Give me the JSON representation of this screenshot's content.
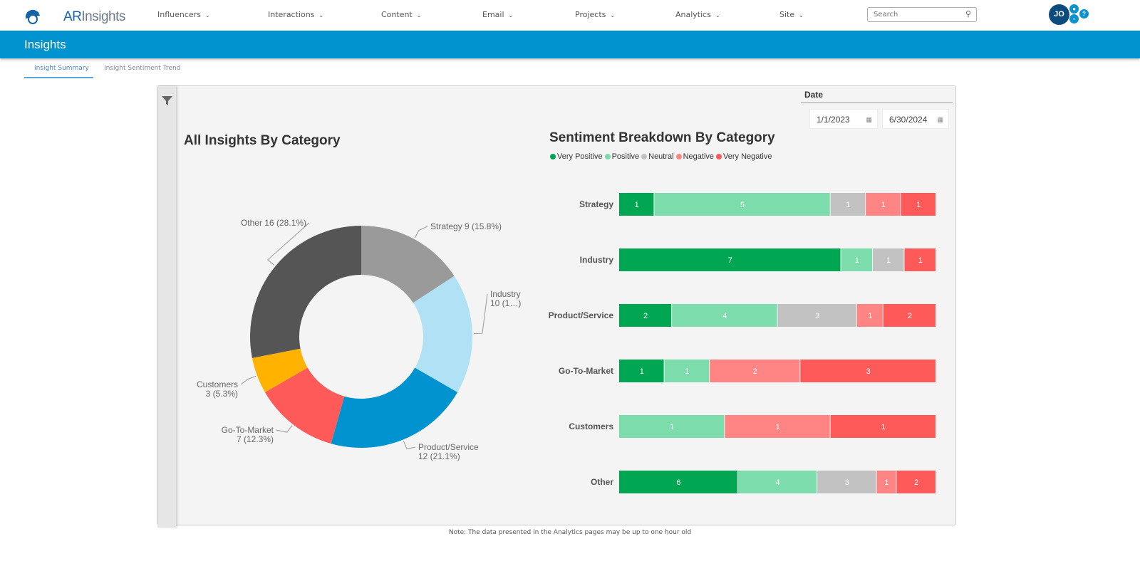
{
  "header": {
    "logo_text_a": "AR",
    "logo_text_b": "Insights",
    "nav": [
      "Influencers",
      "Interactions",
      "Content",
      "Email",
      "Projects",
      "Analytics",
      "Site"
    ],
    "search_placeholder": "Search",
    "avatar_initials": "JO"
  },
  "page_title": "Insights",
  "tabs": [
    {
      "label": "Insight Summary",
      "active": true
    },
    {
      "label": "Insight Sentiment Trend",
      "active": false
    }
  ],
  "date_filter": {
    "label": "Date",
    "start": "1/1/2023",
    "end": "6/30/2024"
  },
  "note": "Note: The data presented in the Analytics pages may be up to one hour old",
  "chart_data": [
    {
      "type": "pie",
      "donut": true,
      "title": "All Insights By Category",
      "categories": [
        "Strategy",
        "Industry",
        "Product/Service",
        "Go-To-Market",
        "Customers",
        "Other"
      ],
      "values": [
        9,
        10,
        12,
        7,
        3,
        16
      ],
      "labels": [
        [
          "Strategy 9 (15.8%)"
        ],
        [
          "Industry",
          "10 (1…)"
        ],
        [
          "Product/Service",
          "12 (21.1%)"
        ],
        [
          "Go-To-Market",
          "7 (12.3%)"
        ],
        [
          "Customers",
          "3 (5.3%)"
        ],
        [
          "Other 16 (28.1%)"
        ]
      ],
      "colors": [
        "#9a9a9a",
        "#b1e1f5",
        "#0093d0",
        "#ff5a5a",
        "#ffb300",
        "#555555"
      ]
    },
    {
      "type": "bar",
      "orientation": "horizontal",
      "stacked": "percent",
      "title": "Sentiment Breakdown By Category",
      "legend_placement": "top-left",
      "categories": [
        "Strategy",
        "Industry",
        "Product/Service",
        "Go-To-Market",
        "Customers",
        "Other"
      ],
      "series": [
        {
          "name": "Very Positive",
          "color": "#00a651",
          "values": [
            1,
            7,
            2,
            1,
            0,
            6
          ]
        },
        {
          "name": "Positive",
          "color": "#7ddcac",
          "values": [
            5,
            1,
            4,
            1,
            1,
            4
          ]
        },
        {
          "name": "Neutral",
          "color": "#c2c2c2",
          "values": [
            1,
            1,
            3,
            0,
            0,
            3
          ]
        },
        {
          "name": "Negative",
          "color": "#ff8585",
          "values": [
            1,
            0,
            1,
            2,
            1,
            1
          ]
        },
        {
          "name": "Very Negative",
          "color": "#ff5a5a",
          "values": [
            1,
            1,
            2,
            3,
            1,
            2
          ]
        }
      ]
    }
  ]
}
